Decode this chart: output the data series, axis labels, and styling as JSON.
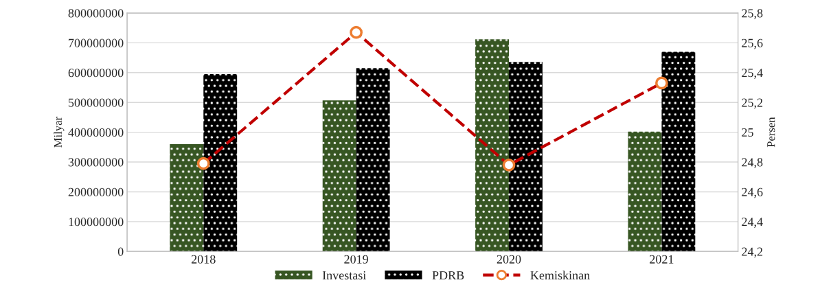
{
  "chart_data": {
    "type": "bar",
    "categories": [
      "2018",
      "2019",
      "2020",
      "2021"
    ],
    "ylabel": "Milyar",
    "y2label": "Persen",
    "series": [
      {
        "name": "Investasi",
        "color": "#375623",
        "values": [
          360000000,
          507000000,
          712000000,
          402000000
        ]
      },
      {
        "name": "PDRB",
        "color": "#000000",
        "values": [
          595000000,
          615000000,
          636000000,
          670000000
        ]
      },
      {
        "name": "Kemiskinan",
        "type": "line",
        "axis": "y2",
        "color": "#c00000",
        "values": [
          24.79,
          25.67,
          24.78,
          25.33
        ]
      }
    ],
    "ylim": [
      0,
      800000000
    ],
    "yticks": [
      0,
      100000000,
      200000000,
      300000000,
      400000000,
      500000000,
      600000000,
      700000000,
      800000000
    ],
    "y2lim": [
      24.2,
      25.8
    ],
    "y2ticks": [
      {
        "value": 24.2,
        "label": "24,2"
      },
      {
        "value": 24.4,
        "label": "24,4"
      },
      {
        "value": 24.6,
        "label": "24,6"
      },
      {
        "value": 24.8,
        "label": "24,8"
      },
      {
        "value": 25,
        "label": "25"
      },
      {
        "value": 25.2,
        "label": "25,2"
      },
      {
        "value": 25.4,
        "label": "25,4"
      },
      {
        "value": 25.6,
        "label": "25,6"
      },
      {
        "value": 25.8,
        "label": "25,8"
      }
    ],
    "grid": "y",
    "legend": "bottom",
    "marker": "circle",
    "line_style": "dashed"
  }
}
